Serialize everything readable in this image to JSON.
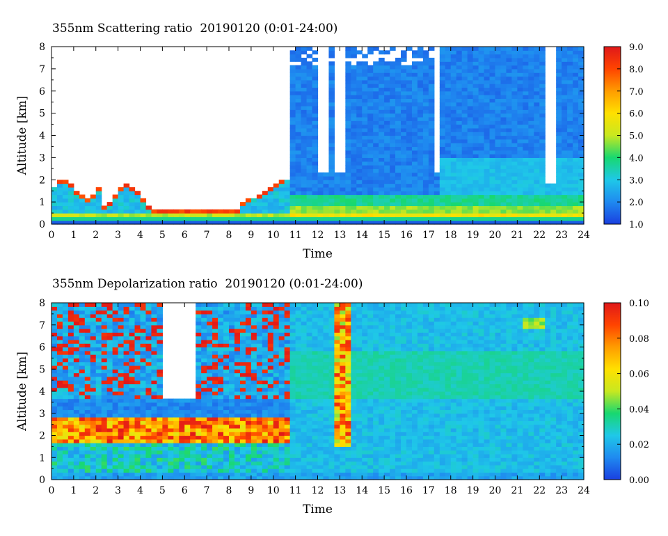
{
  "chart_data": [
    {
      "type": "heatmap",
      "title": "355nm Scattering ratio  20190120 (0:01-24:00)",
      "xlabel": "Time",
      "ylabel": "Altitude [km]",
      "xlim": [
        0,
        24
      ],
      "ylim": [
        0,
        8
      ],
      "x_ticks": [
        "0",
        "1",
        "2",
        "3",
        "4",
        "5",
        "6",
        "7",
        "8",
        "9",
        "10",
        "11",
        "12",
        "13",
        "14",
        "15",
        "16",
        "17",
        "18",
        "19",
        "20",
        "21",
        "22",
        "23",
        "24"
      ],
      "y_ticks": [
        "0",
        "1",
        "2",
        "3",
        "4",
        "5",
        "6",
        "7",
        "8"
      ],
      "colorbar": {
        "range": [
          1.0,
          9.0
        ],
        "tick_labels": [
          "1.0",
          "2.0",
          "3.0",
          "4.0",
          "5.0",
          "6.0",
          "7.0",
          "8.0",
          "9.0"
        ],
        "colors": [
          "#1a3fe0",
          "#1f8af0",
          "#1fc8e8",
          "#18d870",
          "#c8e820",
          "#ffe000",
          "#ff9c00",
          "#ff4400",
          "#e0181a"
        ]
      }
    },
    {
      "type": "heatmap",
      "title": "355nm Depolarization ratio  20190120 (0:01-24:00)",
      "xlabel": "Time",
      "ylabel": "Altitude [km]",
      "xlim": [
        0,
        24
      ],
      "ylim": [
        0,
        8
      ],
      "x_ticks": [
        "0",
        "1",
        "2",
        "3",
        "4",
        "5",
        "6",
        "7",
        "8",
        "9",
        "10",
        "11",
        "12",
        "13",
        "14",
        "15",
        "16",
        "17",
        "18",
        "19",
        "20",
        "21",
        "22",
        "23",
        "24"
      ],
      "y_ticks": [
        "0",
        "1",
        "2",
        "3",
        "4",
        "5",
        "6",
        "7",
        "8"
      ],
      "colorbar": {
        "range": [
          0.0,
          0.1
        ],
        "tick_labels": [
          "0.00",
          "0.02",
          "0.04",
          "0.06",
          "0.08",
          "0.10"
        ],
        "colors": [
          "#1a3fe0",
          "#1f8af0",
          "#1fc8e8",
          "#18d870",
          "#c8e820",
          "#ffe000",
          "#ff9c00",
          "#ff4400",
          "#e0181a"
        ]
      }
    }
  ]
}
